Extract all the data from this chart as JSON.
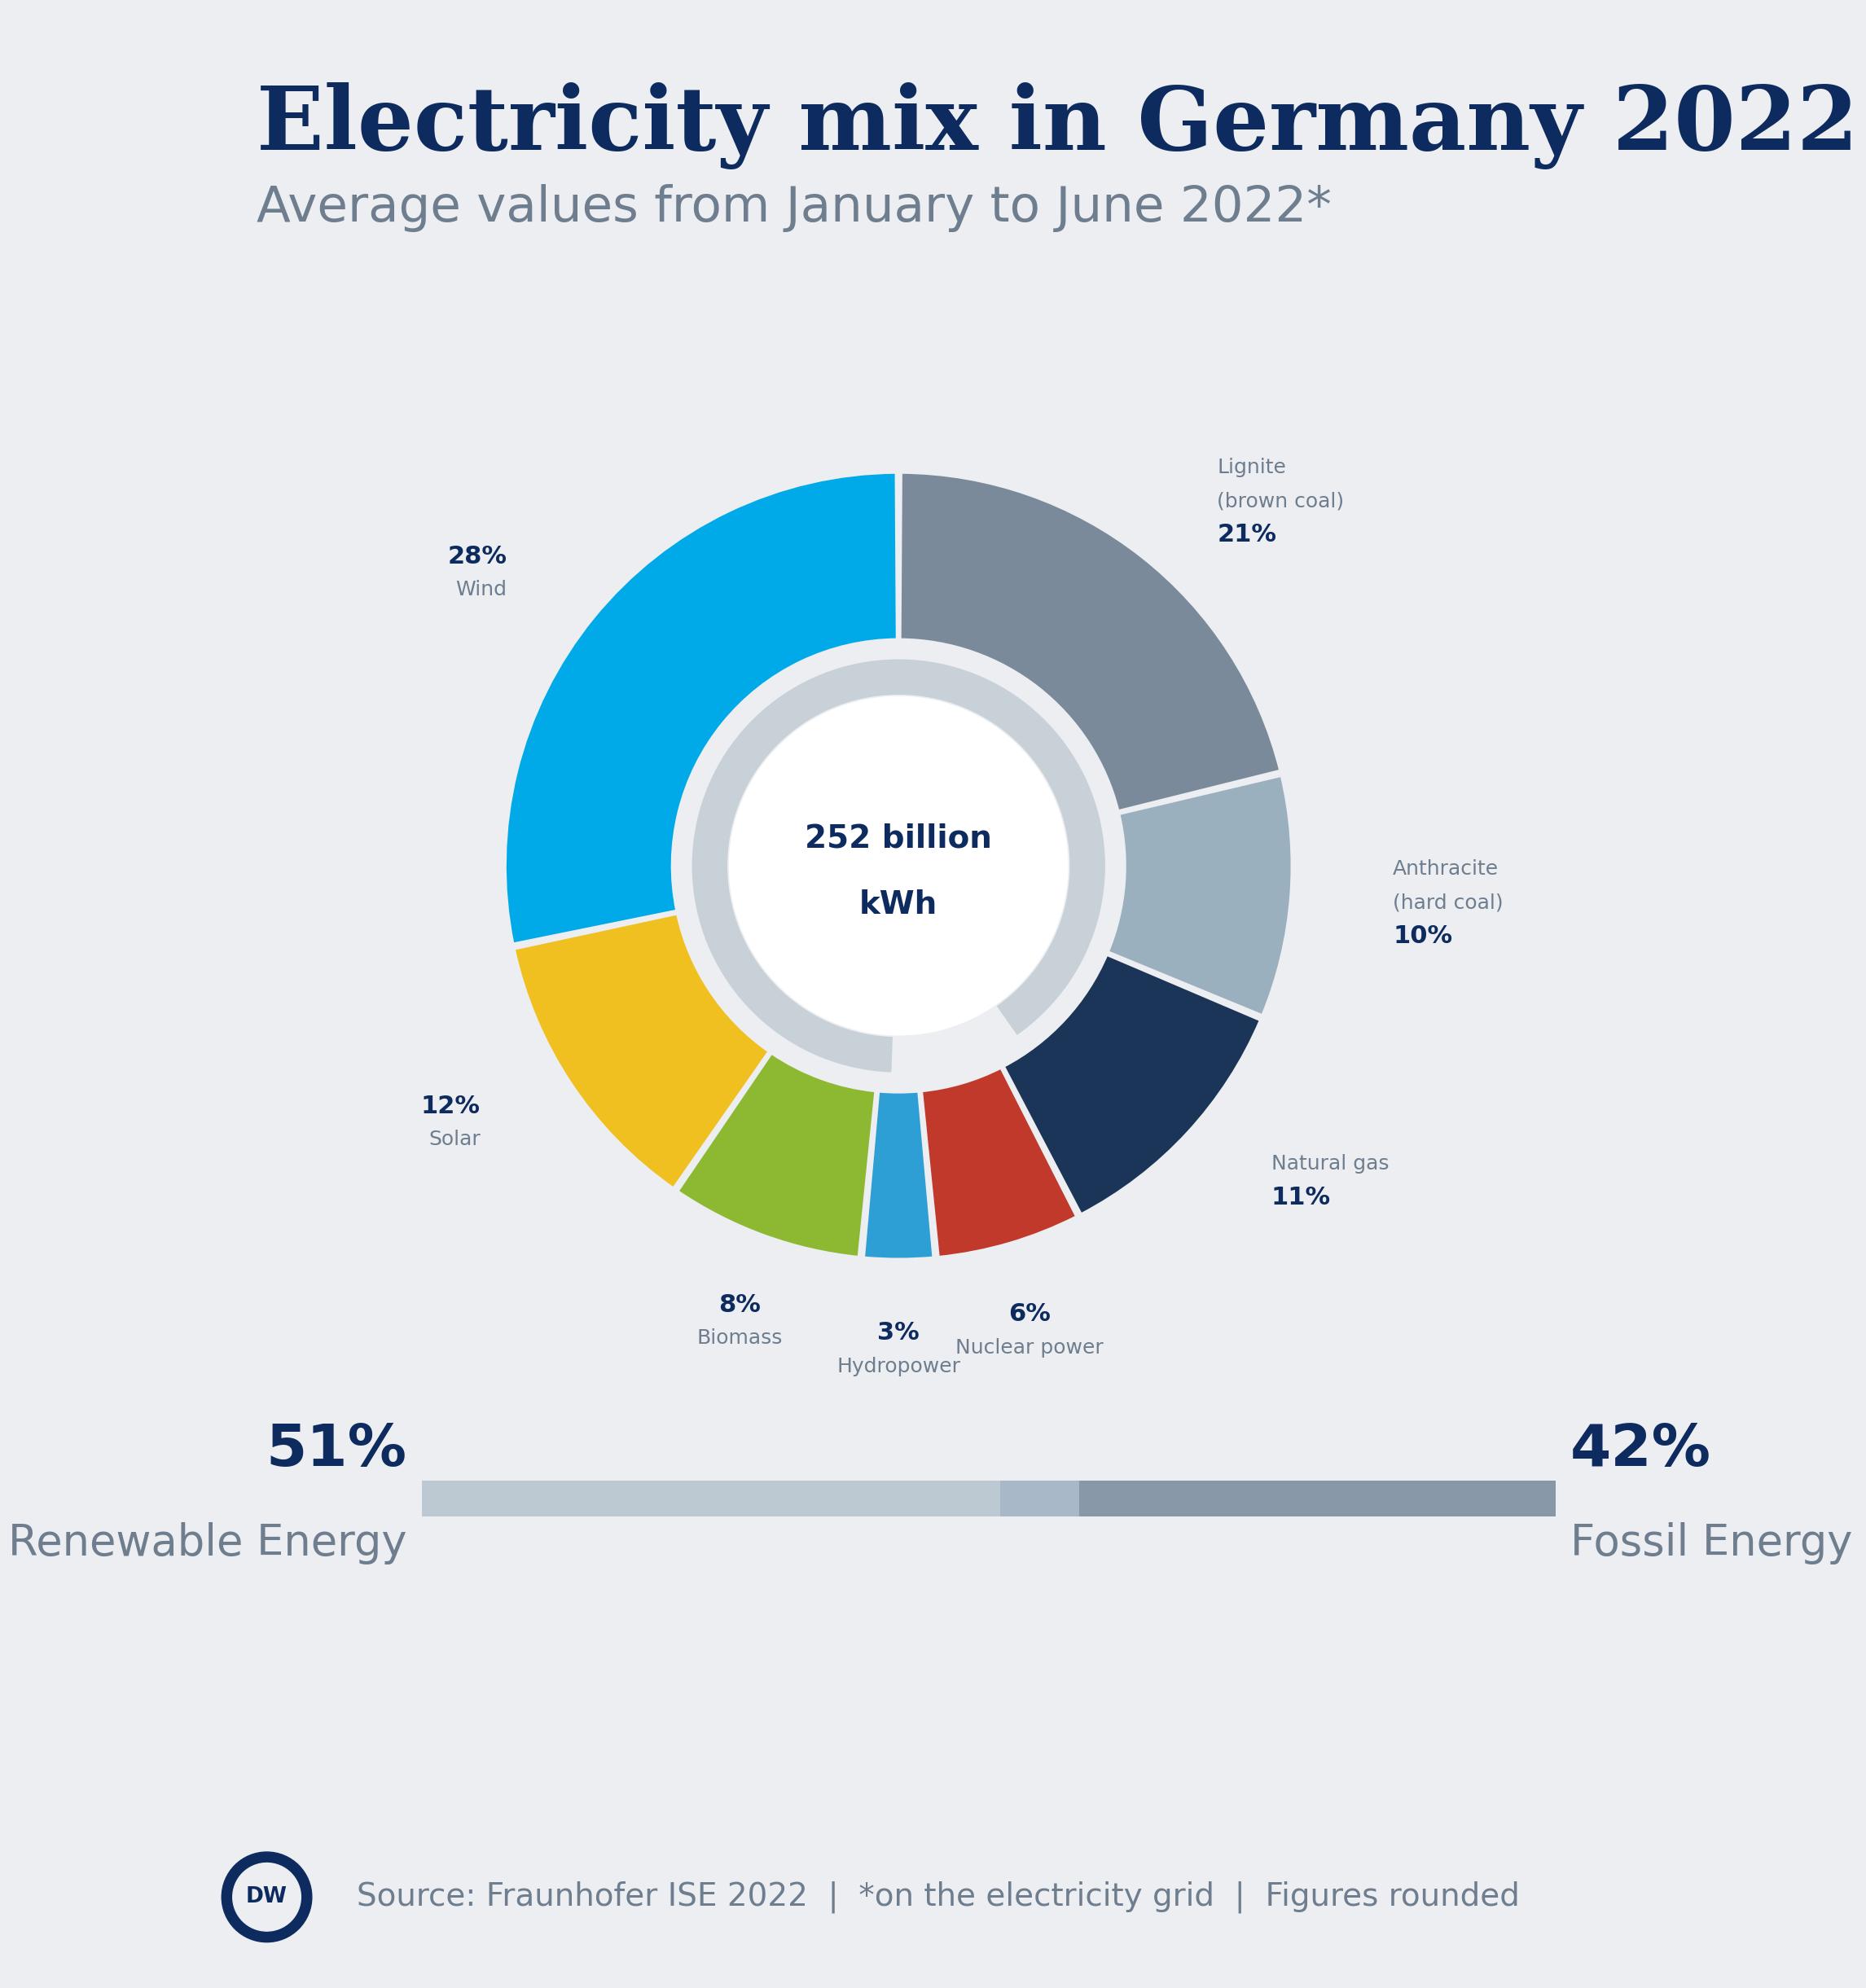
{
  "title": "Electricity mix in Germany 2022",
  "subtitle": "Average values from January to June 2022*",
  "center_text_line1": "252 billion",
  "center_text_line2": "kWh",
  "background_color": "#eceef2",
  "title_color": "#0d2b5e",
  "subtitle_color": "#6e7e8e",
  "slices": [
    {
      "label_line1": "Lignite",
      "label_line2": "(brown coal)",
      "pct": 21,
      "color": "#7a8a9a",
      "label_color": "#6e7e8e",
      "pct_color": "#0d2b5e"
    },
    {
      "label_line1": "Anthracite",
      "label_line2": "(hard coal)",
      "pct": 10,
      "color": "#9ab0bf",
      "label_color": "#6e7e8e",
      "pct_color": "#0d2b5e"
    },
    {
      "label_line1": "Natural gas",
      "label_line2": "",
      "pct": 11,
      "color": "#1a3558",
      "label_color": "#6e7e8e",
      "pct_color": "#0d2b5e"
    },
    {
      "label_line1": "Nuclear power",
      "label_line2": "",
      "pct": 6,
      "color": "#c0392b",
      "label_color": "#6e7e8e",
      "pct_color": "#0d2b5e"
    },
    {
      "label_line1": "Hydropower",
      "label_line2": "",
      "pct": 3,
      "color": "#2e9fd4",
      "label_color": "#6e7e8e",
      "pct_color": "#0d2b5e"
    },
    {
      "label_line1": "Biomass",
      "label_line2": "",
      "pct": 8,
      "color": "#8db832",
      "label_color": "#6e7e8e",
      "pct_color": "#0d2b5e"
    },
    {
      "label_line1": "Solar",
      "label_line2": "",
      "pct": 12,
      "color": "#f0c020",
      "label_color": "#6e7e8e",
      "pct_color": "#0d2b5e"
    },
    {
      "label_line1": "Wind",
      "label_line2": "",
      "pct": 28,
      "color": "#00aae8",
      "label_color": "#6e7e8e",
      "pct_color": "#0d2b5e"
    }
  ],
  "inner_ring_color": "#c8d0d8",
  "renewable_pct": "51%",
  "fossil_pct": "42%",
  "renewable_label": "Renewable Energy",
  "fossil_label": "Fossil Energy",
  "bar_renewable_color": "#bcc8d2",
  "bar_fossil_color": "#8898a8",
  "source_text": "Source: Fraunhofer ISE 2022  |  *on the electricity grid  |  Figures rounded",
  "dw_color": "#0d2b5e"
}
